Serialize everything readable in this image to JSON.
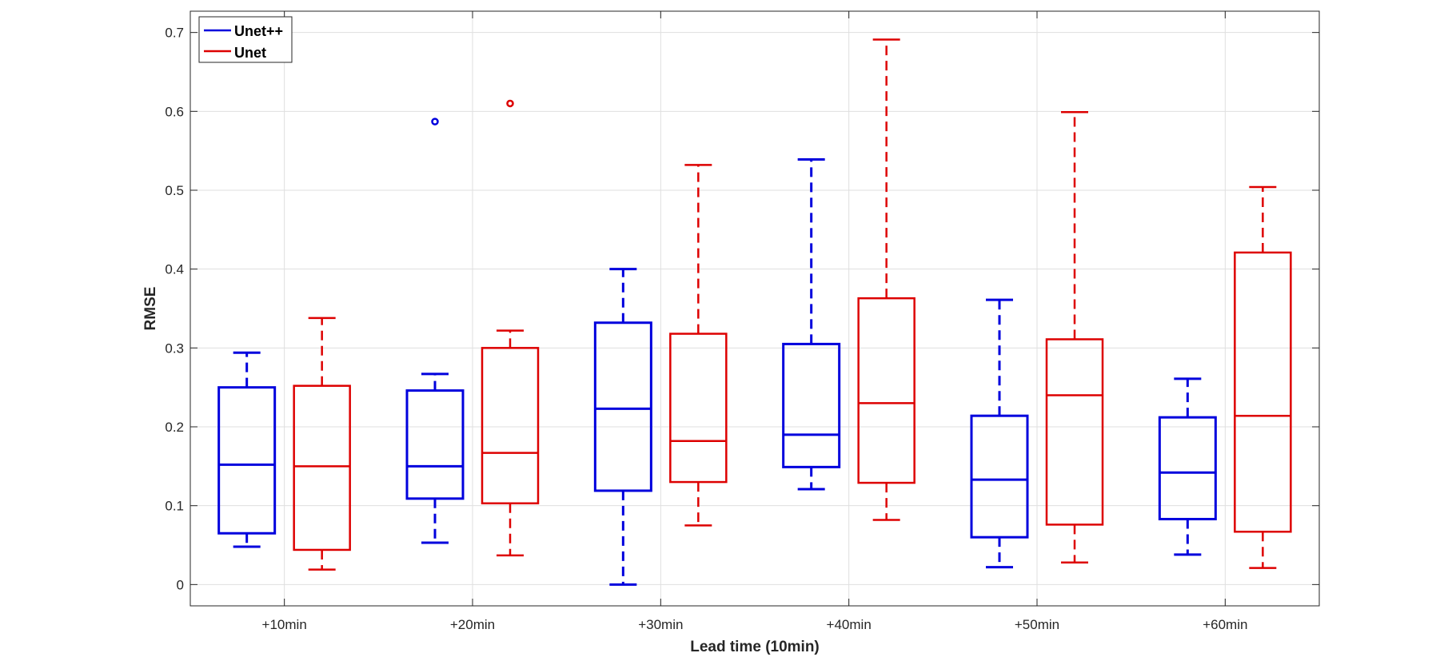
{
  "chart_data": {
    "type": "boxplot",
    "title": "",
    "xlabel": "Lead time (10min)",
    "ylabel": "RMSE",
    "ylim": [
      -0.027,
      0.727
    ],
    "yticks": [
      0,
      0.1,
      0.2,
      0.3,
      0.4,
      0.5,
      0.6,
      0.7
    ],
    "ytick_labels": [
      "0",
      "0.1",
      "0.2",
      "0.3",
      "0.4",
      "0.5",
      "0.6",
      "0.7"
    ],
    "categories": [
      "+10min",
      "+20min",
      "+30min",
      "+40min",
      "+50min",
      "+60min"
    ],
    "grid": true,
    "legend": {
      "placement": "top-left"
    },
    "series": [
      {
        "name": "Unet++",
        "color": "#0000dd",
        "boxes": [
          {
            "whisker_low": 0.048,
            "q1": 0.065,
            "median": 0.152,
            "q3": 0.25,
            "whisker_high": 0.294,
            "outliers": []
          },
          {
            "whisker_low": 0.053,
            "q1": 0.109,
            "median": 0.15,
            "q3": 0.246,
            "whisker_high": 0.267,
            "outliers": [
              0.587
            ]
          },
          {
            "whisker_low": 0.0,
            "q1": 0.119,
            "median": 0.223,
            "q3": 0.332,
            "whisker_high": 0.4,
            "outliers": []
          },
          {
            "whisker_low": 0.121,
            "q1": 0.149,
            "median": 0.19,
            "q3": 0.305,
            "whisker_high": 0.539,
            "outliers": []
          },
          {
            "whisker_low": 0.022,
            "q1": 0.06,
            "median": 0.133,
            "q3": 0.214,
            "whisker_high": 0.361,
            "outliers": []
          },
          {
            "whisker_low": 0.038,
            "q1": 0.083,
            "median": 0.142,
            "q3": 0.212,
            "whisker_high": 0.261,
            "outliers": []
          }
        ]
      },
      {
        "name": "Unet",
        "color": "#dd0000",
        "boxes": [
          {
            "whisker_low": 0.019,
            "q1": 0.044,
            "median": 0.15,
            "q3": 0.252,
            "whisker_high": 0.338,
            "outliers": []
          },
          {
            "whisker_low": 0.037,
            "q1": 0.103,
            "median": 0.167,
            "q3": 0.3,
            "whisker_high": 0.322,
            "outliers": [
              0.61
            ]
          },
          {
            "whisker_low": 0.075,
            "q1": 0.13,
            "median": 0.182,
            "q3": 0.318,
            "whisker_high": 0.532,
            "outliers": []
          },
          {
            "whisker_low": 0.082,
            "q1": 0.129,
            "median": 0.23,
            "q3": 0.363,
            "whisker_high": 0.691,
            "outliers": []
          },
          {
            "whisker_low": 0.028,
            "q1": 0.076,
            "median": 0.24,
            "q3": 0.311,
            "whisker_high": 0.599,
            "outliers": []
          },
          {
            "whisker_low": 0.021,
            "q1": 0.067,
            "median": 0.214,
            "q3": 0.421,
            "whisker_high": 0.504,
            "outliers": []
          }
        ]
      }
    ]
  }
}
